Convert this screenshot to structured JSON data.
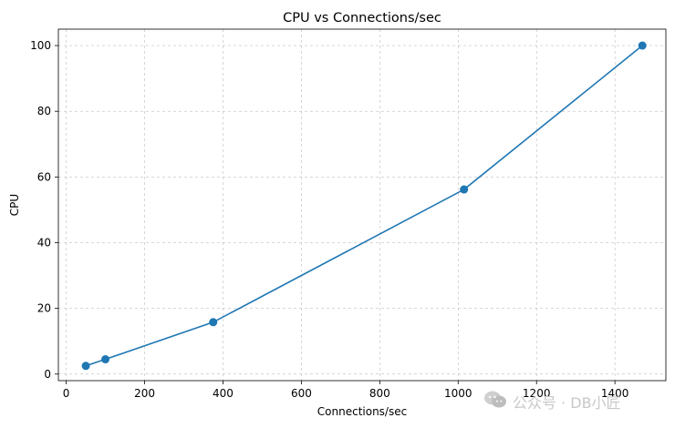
{
  "chart_data": {
    "type": "line",
    "title": "CPU vs Connections/sec",
    "xlabel": "Connections/sec",
    "ylabel": "CPU",
    "x": [
      50,
      100,
      375,
      1015,
      1470
    ],
    "y": [
      2.5,
      4.5,
      15.8,
      56.2,
      100
    ],
    "xlim": [
      -20,
      1530
    ],
    "ylim": [
      -2,
      105
    ],
    "xticks": [
      0,
      200,
      400,
      600,
      800,
      1000,
      1200,
      1400
    ],
    "yticks": [
      0,
      20,
      40,
      60,
      80,
      100
    ],
    "grid": true,
    "line_color": "#1f77b4",
    "marker": "circle"
  },
  "watermark": {
    "text": "公众号 · DB小匠",
    "icon": "wechat-icon"
  }
}
